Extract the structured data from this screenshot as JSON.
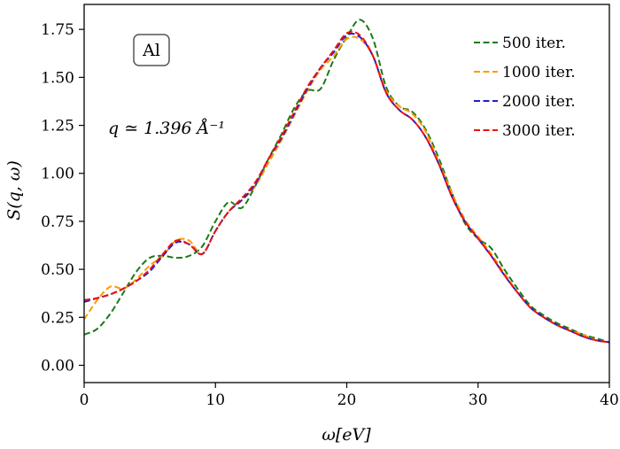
{
  "chart_data": {
    "type": "line",
    "xlabel": "ω[eV]",
    "ylabel": "S(q, ω)",
    "xlim": [
      0,
      40
    ],
    "ylim": [
      -0.09,
      1.88
    ],
    "xticks": [
      0,
      10,
      20,
      30,
      40
    ],
    "yticks": [
      0.0,
      0.25,
      0.5,
      0.75,
      1.0,
      1.25,
      1.5,
      1.75
    ],
    "xtick_labels": [
      "0",
      "10",
      "20",
      "30",
      "40"
    ],
    "ytick_labels": [
      "0.00",
      "0.25",
      "0.50",
      "0.75",
      "1.00",
      "1.25",
      "1.50",
      "1.75"
    ],
    "grid": false,
    "legend_position": "top-right",
    "annotations": {
      "element_box": "Al",
      "q_value": "q ≃ 1.396 Å⁻¹"
    },
    "series": [
      {
        "name": "500 iter.",
        "color": "#1a7a1a",
        "x": [
          0,
          1,
          2,
          3,
          4,
          5,
          6,
          7,
          8,
          9,
          10,
          11,
          12,
          13,
          14,
          15,
          16,
          17,
          18,
          19,
          20,
          21,
          22,
          23,
          24,
          25,
          26,
          27,
          28,
          29,
          30,
          31,
          32,
          33,
          34,
          35,
          36,
          37,
          38,
          39,
          40
        ],
        "values": [
          0.16,
          0.19,
          0.27,
          0.38,
          0.49,
          0.56,
          0.57,
          0.56,
          0.57,
          0.62,
          0.75,
          0.85,
          0.82,
          0.93,
          1.07,
          1.2,
          1.34,
          1.43,
          1.44,
          1.59,
          1.71,
          1.8,
          1.7,
          1.45,
          1.35,
          1.32,
          1.23,
          1.08,
          0.9,
          0.74,
          0.66,
          0.61,
          0.5,
          0.4,
          0.31,
          0.26,
          0.22,
          0.19,
          0.16,
          0.14,
          0.12
        ]
      },
      {
        "name": "1000 iter.",
        "color": "#ff9900",
        "x": [
          0,
          1,
          2,
          3,
          4,
          5,
          6,
          7,
          8,
          9,
          10,
          11,
          12,
          13,
          14,
          15,
          16,
          17,
          18,
          19,
          20,
          21,
          22,
          23,
          24,
          25,
          26,
          27,
          28,
          29,
          30,
          31,
          32,
          33,
          34,
          35,
          36,
          37,
          38,
          39,
          40
        ],
        "values": [
          0.24,
          0.34,
          0.41,
          0.4,
          0.45,
          0.52,
          0.57,
          0.65,
          0.65,
          0.58,
          0.7,
          0.8,
          0.86,
          0.93,
          1.05,
          1.17,
          1.3,
          1.43,
          1.54,
          1.61,
          1.7,
          1.7,
          1.61,
          1.43,
          1.35,
          1.31,
          1.22,
          1.06,
          0.9,
          0.76,
          0.67,
          0.58,
          0.48,
          0.38,
          0.3,
          0.25,
          0.21,
          0.18,
          0.16,
          0.13,
          0.12
        ]
      },
      {
        "name": "2000 iter.",
        "color": "#1f1fcc",
        "x": [
          0,
          1,
          2,
          3,
          4,
          5,
          6,
          7,
          8,
          9,
          10,
          11,
          12,
          13,
          14,
          15,
          16,
          17,
          18,
          19,
          20,
          21,
          22,
          23,
          24,
          25,
          26,
          27,
          28,
          29,
          30,
          31,
          32,
          33,
          34,
          35,
          36,
          37,
          38,
          39,
          40
        ],
        "values": [
          0.33,
          0.35,
          0.37,
          0.4,
          0.44,
          0.49,
          0.57,
          0.64,
          0.63,
          0.58,
          0.7,
          0.8,
          0.86,
          0.94,
          1.07,
          1.18,
          1.31,
          1.44,
          1.55,
          1.63,
          1.72,
          1.71,
          1.61,
          1.42,
          1.33,
          1.28,
          1.19,
          1.05,
          0.88,
          0.75,
          0.66,
          0.57,
          0.47,
          0.38,
          0.3,
          0.25,
          0.21,
          0.18,
          0.15,
          0.13,
          0.12
        ]
      },
      {
        "name": "3000 iter.",
        "color": "#ee1111",
        "x": [
          0,
          1,
          2,
          3,
          4,
          5,
          6,
          7,
          8,
          9,
          10,
          11,
          12,
          13,
          14,
          15,
          16,
          17,
          18,
          19,
          20,
          21,
          22,
          23,
          24,
          25,
          26,
          27,
          28,
          29,
          30,
          31,
          32,
          33,
          34,
          35,
          36,
          37,
          38,
          39,
          40
        ],
        "values": [
          0.34,
          0.35,
          0.37,
          0.4,
          0.44,
          0.5,
          0.58,
          0.65,
          0.63,
          0.58,
          0.7,
          0.8,
          0.87,
          0.95,
          1.07,
          1.19,
          1.32,
          1.45,
          1.55,
          1.64,
          1.73,
          1.72,
          1.61,
          1.42,
          1.33,
          1.28,
          1.19,
          1.05,
          0.88,
          0.75,
          0.66,
          0.57,
          0.47,
          0.38,
          0.3,
          0.25,
          0.21,
          0.18,
          0.15,
          0.13,
          0.12
        ]
      }
    ]
  }
}
